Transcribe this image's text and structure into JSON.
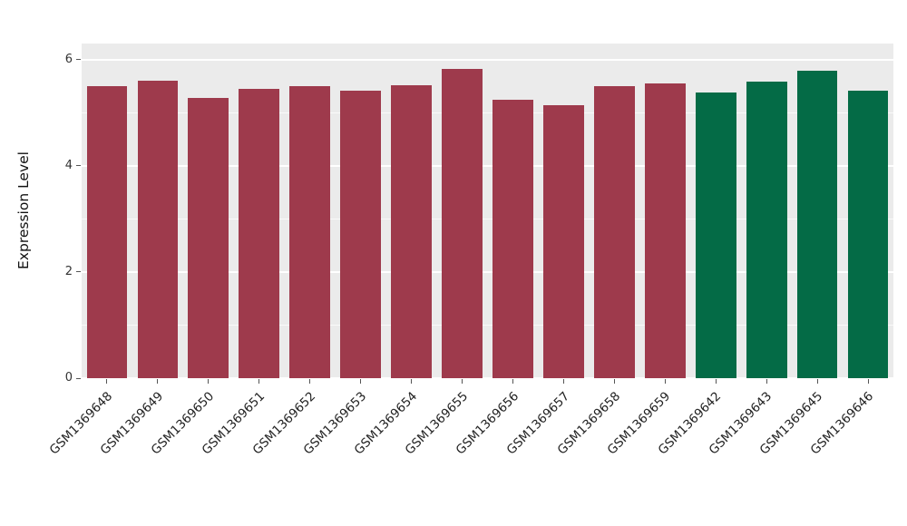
{
  "chart_data": {
    "type": "bar",
    "title": "",
    "xlabel": "",
    "ylabel": "Expression Level",
    "ylim": [
      0,
      6.3
    ],
    "yticks": [
      0,
      2,
      4,
      6
    ],
    "minor_yticks": [
      1,
      3,
      5
    ],
    "grid": "on",
    "legend": "none",
    "plot_background": "#EBEBEB",
    "figure_background": "#FFFFFF",
    "group_colors": {
      "group1": "#9E3A4C",
      "group2": "#046B46"
    },
    "categories": [
      "GSM1369648",
      "GSM1369649",
      "GSM1369650",
      "GSM1369651",
      "GSM1369652",
      "GSM1369653",
      "GSM1369654",
      "GSM1369655",
      "GSM1369656",
      "GSM1369657",
      "GSM1369658",
      "GSM1369659",
      "GSM1369642",
      "GSM1369643",
      "GSM1369645",
      "GSM1369646"
    ],
    "values": [
      5.5,
      5.6,
      5.27,
      5.45,
      5.5,
      5.42,
      5.52,
      5.82,
      5.24,
      5.14,
      5.5,
      5.55,
      5.38,
      5.58,
      5.78,
      5.42
    ],
    "groups": [
      "group1",
      "group1",
      "group1",
      "group1",
      "group1",
      "group1",
      "group1",
      "group1",
      "group1",
      "group1",
      "group1",
      "group1",
      "group2",
      "group2",
      "group2",
      "group2"
    ]
  }
}
